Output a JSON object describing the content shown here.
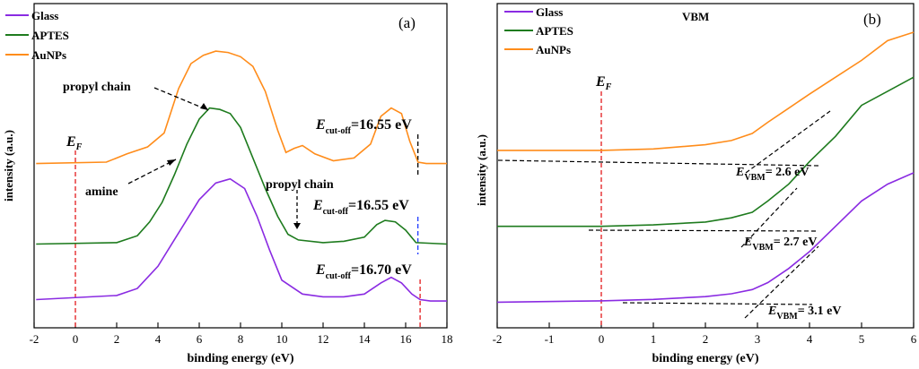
{
  "chart_data": [
    {
      "type": "line",
      "panel_label": "(a)",
      "xlabel": "binding energy (eV)",
      "ylabel": "intensity (a.u.)",
      "xlim": [
        -2,
        18
      ],
      "ylim": [
        0,
        1
      ],
      "xticks": [
        "-2",
        "0",
        "2",
        "4",
        "6",
        "8",
        "10",
        "12",
        "14",
        "16",
        "18"
      ],
      "legend": [
        {
          "name": "Glass",
          "color": "#8a2be2"
        },
        {
          "name": "APTES",
          "color": "#1e7b1e"
        },
        {
          "name": "AuNPs",
          "color": "#ff8c1a"
        }
      ],
      "series": [
        {
          "name": "Glass",
          "color": "#8a2be2",
          "x": [
            -1.9,
            2.0,
            3.0,
            4.0,
            5.0,
            6.0,
            6.8,
            7.5,
            8.2,
            8.8,
            9.4,
            10.0,
            11.0,
            12.0,
            13.0,
            14.0,
            14.8,
            15.3,
            15.8,
            16.3,
            16.7,
            17.2,
            18.0
          ],
          "y": [
            0.05,
            0.065,
            0.09,
            0.17,
            0.29,
            0.41,
            0.47,
            0.485,
            0.45,
            0.35,
            0.23,
            0.12,
            0.07,
            0.06,
            0.06,
            0.07,
            0.11,
            0.13,
            0.11,
            0.07,
            0.05,
            0.045,
            0.045
          ]
        },
        {
          "name": "APTES",
          "color": "#1e7b1e",
          "x": [
            -1.9,
            2.0,
            3.0,
            3.6,
            4.2,
            4.8,
            5.4,
            6.0,
            6.5,
            7.0,
            7.5,
            8.0,
            8.6,
            9.2,
            9.8,
            10.3,
            10.8,
            12.0,
            13.0,
            14.0,
            14.6,
            15.0,
            15.5,
            16.0,
            16.5,
            18.0
          ],
          "y": [
            0.25,
            0.255,
            0.28,
            0.33,
            0.4,
            0.5,
            0.61,
            0.7,
            0.74,
            0.735,
            0.72,
            0.67,
            0.56,
            0.45,
            0.35,
            0.285,
            0.265,
            0.255,
            0.26,
            0.275,
            0.32,
            0.335,
            0.33,
            0.3,
            0.255,
            0.25
          ]
        },
        {
          "name": "AuNPs",
          "color": "#ff8c1a",
          "x": [
            -1.9,
            1.5,
            2.5,
            3.5,
            4.3,
            5.0,
            5.6,
            6.2,
            6.8,
            7.4,
            8.0,
            8.6,
            9.2,
            9.8,
            10.2,
            10.6,
            11.0,
            11.6,
            12.5,
            13.5,
            14.3,
            14.8,
            15.3,
            15.8,
            16.2,
            16.6,
            17.0,
            18.0
          ],
          "y": [
            0.54,
            0.545,
            0.575,
            0.6,
            0.65,
            0.81,
            0.9,
            0.93,
            0.945,
            0.94,
            0.925,
            0.89,
            0.8,
            0.66,
            0.58,
            0.595,
            0.605,
            0.575,
            0.55,
            0.56,
            0.61,
            0.71,
            0.74,
            0.72,
            0.62,
            0.545,
            0.54,
            0.54
          ]
        }
      ],
      "ef_label": "E",
      "ef_sub": "F",
      "ef_x": 0,
      "annotations": {
        "propyl_chain_top": "propyl chain",
        "amine": "amine",
        "propyl_chain_bottom": "propyl chain"
      },
      "cutoffs": [
        {
          "main": "E",
          "sub": "cut-off",
          "value": "=16.55 eV",
          "x": 16.55,
          "color": "#000000"
        },
        {
          "main": "E",
          "sub": "cut-off",
          "value": "=16.55 eV",
          "x": 16.55,
          "color": "#1f3bff"
        },
        {
          "main": "E",
          "sub": "cut-off",
          "value": "=16.70 eV",
          "x": 16.7,
          "color": "#e31a1c"
        }
      ]
    },
    {
      "type": "line",
      "panel_label": "(b)",
      "title": "VBM",
      "xlabel": "binding energy (eV)",
      "ylabel": "intensity (a.u.)",
      "xlim": [
        -2,
        6
      ],
      "ylim": [
        0,
        1
      ],
      "xticks": [
        "-2",
        "-1",
        "0",
        "1",
        "2",
        "3",
        "4",
        "5",
        "6"
      ],
      "legend": [
        {
          "name": "Glass",
          "color": "#8a2be2"
        },
        {
          "name": "APTES",
          "color": "#1e7b1e"
        },
        {
          "name": "AuNPs",
          "color": "#ff8c1a"
        }
      ],
      "series": [
        {
          "name": "Glass",
          "color": "#8a2be2",
          "x": [
            -2.0,
            0.0,
            1.0,
            2.0,
            2.5,
            2.9,
            3.2,
            3.6,
            4.0,
            4.5,
            5.0,
            5.5,
            6.0
          ],
          "y": [
            0.04,
            0.045,
            0.05,
            0.06,
            0.07,
            0.085,
            0.11,
            0.16,
            0.22,
            0.31,
            0.4,
            0.46,
            0.5
          ]
        },
        {
          "name": "APTES",
          "color": "#1e7b1e",
          "x": [
            -2.0,
            0.0,
            1.0,
            2.0,
            2.5,
            2.9,
            3.2,
            3.6,
            4.0,
            4.5,
            5.0,
            5.5,
            6.0
          ],
          "y": [
            0.31,
            0.31,
            0.315,
            0.325,
            0.34,
            0.36,
            0.4,
            0.46,
            0.54,
            0.63,
            0.74,
            0.79,
            0.84
          ]
        },
        {
          "name": "AuNPs",
          "color": "#ff8c1a",
          "x": [
            -2.0,
            0.0,
            1.0,
            2.0,
            2.5,
            2.9,
            3.2,
            3.6,
            4.0,
            4.5,
            5.0,
            5.5,
            6.0
          ],
          "y": [
            0.58,
            0.58,
            0.585,
            0.6,
            0.615,
            0.64,
            0.68,
            0.73,
            0.78,
            0.84,
            0.9,
            0.97,
            1.0
          ]
        }
      ],
      "ef_label": "E",
      "ef_sub": "F",
      "ef_x": 0,
      "vbm": [
        {
          "main": "E",
          "sub": "VBM",
          "value": "= 2.6 eV",
          "x": 2.6
        },
        {
          "main": "E",
          "sub": "VBM",
          "value": "= 2.7 eV",
          "x": 2.7
        },
        {
          "main": "E",
          "sub": "VBM",
          "value": "= 3.1 eV",
          "x": 3.1
        }
      ]
    }
  ]
}
